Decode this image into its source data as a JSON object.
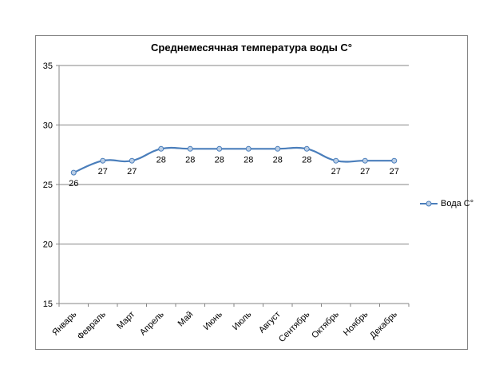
{
  "chart_data": {
    "type": "line",
    "title": "Среднемесячная температура воды С°",
    "categories": [
      "Январь",
      "Февраль",
      "Март",
      "Апрель",
      "Май",
      "Июнь",
      "Июль",
      "Август",
      "Сентябрь",
      "Октябрь",
      "Ноябрь",
      "Декабрь"
    ],
    "series": [
      {
        "name": "Вода С°",
        "values": [
          26,
          27,
          27,
          28,
          28,
          28,
          28,
          28,
          28,
          27,
          27,
          27
        ],
        "color": "#4a7ebb"
      }
    ],
    "yticks": [
      "15",
      "20",
      "25",
      "30",
      "35"
    ],
    "ylim": [
      15,
      35
    ],
    "grid": true,
    "legend": "right",
    "smooth": true
  }
}
